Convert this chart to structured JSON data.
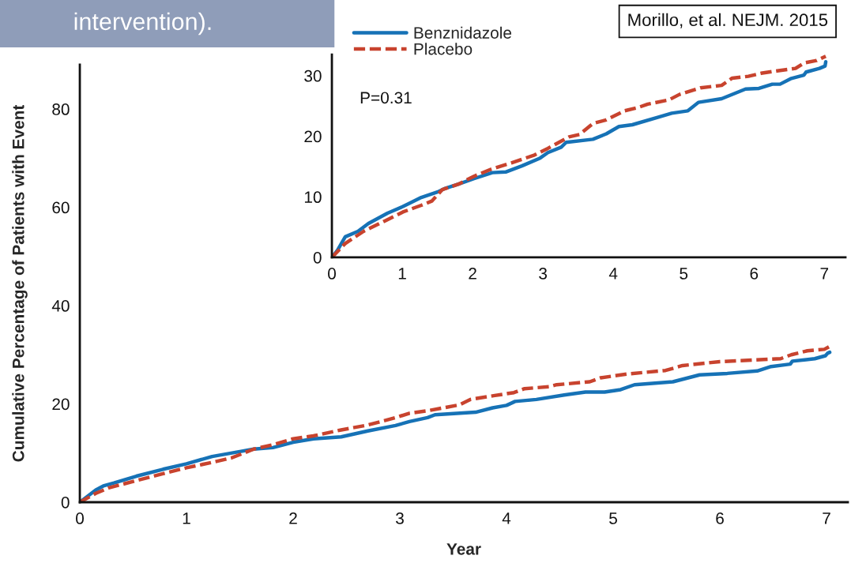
{
  "chart_data": [
    {
      "type": "line",
      "title": "intervention).",
      "xlabel": "Year",
      "ylabel": "Cumulative Percentage of Patients with Event",
      "xlim": [
        0,
        7.2
      ],
      "ylim": [
        0,
        89
      ],
      "xticks": [
        0,
        1,
        2,
        3,
        4,
        5,
        6,
        7
      ],
      "yticks": [
        0,
        20,
        40,
        60,
        80
      ],
      "annotations": [
        "Morillo, et al. NEJM. 2015"
      ],
      "series": [
        {
          "color": "#1672b6",
          "line_style": "solid",
          "x": [
            0,
            0.15,
            0.22,
            0.32,
            0.53,
            0.78,
            1.0,
            1.24,
            1.5,
            1.63,
            1.81,
            2.0,
            2.19,
            2.45,
            2.7,
            2.96,
            3.09,
            3.26,
            3.33,
            3.71,
            3.87,
            4.0,
            4.08,
            4.28,
            4.54,
            4.74,
            4.92,
            5.07,
            5.2,
            5.56,
            5.81,
            6.07,
            6.35,
            6.48,
            6.66,
            6.68,
            6.89,
            6.99,
            7.01,
            7.03
          ],
          "values": [
            0,
            2.5,
            3.3,
            3.9,
            5.3,
            6.7,
            7.8,
            9.3,
            10.3,
            10.8,
            11.1,
            12.2,
            12.9,
            13.3,
            14.5,
            15.6,
            16.4,
            17.2,
            17.8,
            18.3,
            19.2,
            19.7,
            20.5,
            20.9,
            21.8,
            22.4,
            22.4,
            22.9,
            23.9,
            24.5,
            25.9,
            26.2,
            26.7,
            27.6,
            28.1,
            28.7,
            29.2,
            29.8,
            30.3,
            30.5
          ]
        },
        {
          "color": "#c8432e",
          "line_style": "dashed",
          "x": [
            0,
            0.15,
            0.27,
            0.53,
            0.78,
            1.0,
            1.24,
            1.42,
            1.63,
            1.81,
            2.0,
            2.19,
            2.45,
            2.7,
            2.96,
            3.09,
            3.26,
            3.56,
            3.66,
            3.89,
            4.07,
            4.17,
            4.4,
            4.47,
            4.78,
            4.88,
            5.14,
            5.49,
            5.65,
            6.0,
            6.57,
            6.67,
            6.82,
            6.98,
            7.03
          ],
          "values": [
            0,
            1.8,
            2.9,
            4.4,
            5.8,
            7.0,
            8.1,
            9.0,
            10.8,
            11.7,
            12.9,
            13.5,
            14.7,
            15.7,
            17.2,
            18.1,
            18.6,
            19.8,
            20.9,
            21.7,
            22.3,
            23.1,
            23.5,
            23.9,
            24.5,
            25.3,
            26.1,
            26.8,
            27.8,
            28.6,
            29.2,
            30.0,
            30.8,
            31.1,
            31.7
          ]
        }
      ]
    },
    {
      "type": "line",
      "xlim": [
        0,
        7.3
      ],
      "ylim": [
        0,
        33.5
      ],
      "xticks": [
        0,
        1,
        2,
        3,
        4,
        5,
        6,
        7
      ],
      "yticks": [
        0,
        10,
        20,
        30
      ],
      "legend": "top left",
      "annotations": [
        "P=0.31"
      ],
      "series": [
        {
          "name": "Benznidazole",
          "color": "#1672b6",
          "line_style": "solid",
          "x": [
            0,
            0.08,
            0.19,
            0.37,
            0.52,
            0.79,
            1.01,
            1.27,
            1.5,
            1.61,
            1.8,
            2.02,
            2.28,
            2.47,
            2.7,
            2.96,
            3.07,
            3.26,
            3.33,
            3.71,
            3.9,
            4.08,
            4.27,
            4.65,
            4.83,
            5.06,
            5.21,
            5.54,
            5.88,
            6.07,
            6.26,
            6.37,
            6.52,
            6.71,
            6.74,
            6.93,
            7.01,
            7.02
          ],
          "values": [
            0,
            1.2,
            3.4,
            4.3,
            5.6,
            7.3,
            8.4,
            9.9,
            10.8,
            11.4,
            12.1,
            13.0,
            14.0,
            14.1,
            15.1,
            16.4,
            17.3,
            18.2,
            19.0,
            19.5,
            20.4,
            21.6,
            21.9,
            23.2,
            23.8,
            24.2,
            25.6,
            26.2,
            27.8,
            27.9,
            28.6,
            28.6,
            29.5,
            30.1,
            30.6,
            31.2,
            31.6,
            32.3
          ]
        },
        {
          "name": "Placebo",
          "color": "#c8432e",
          "line_style": "dashed",
          "x": [
            0,
            0.19,
            0.45,
            0.75,
            1.01,
            1.27,
            1.42,
            1.57,
            1.8,
            2.02,
            2.25,
            2.55,
            2.88,
            3.07,
            3.37,
            3.52,
            3.71,
            3.9,
            4.16,
            4.34,
            4.49,
            4.79,
            4.94,
            5.24,
            5.54,
            5.69,
            5.92,
            6.1,
            6.33,
            6.59,
            6.71,
            6.89,
            7.02
          ],
          "values": [
            0,
            2.3,
            4.3,
            6.0,
            7.5,
            8.6,
            9.3,
            11.2,
            12.1,
            13.4,
            14.5,
            15.6,
            16.9,
            18.0,
            19.9,
            20.3,
            22.1,
            22.7,
            24.2,
            24.7,
            25.3,
            26.0,
            26.9,
            28.0,
            28.4,
            29.6,
            29.9,
            30.4,
            30.8,
            31.2,
            32.1,
            32.5,
            33.2
          ]
        }
      ]
    }
  ]
}
